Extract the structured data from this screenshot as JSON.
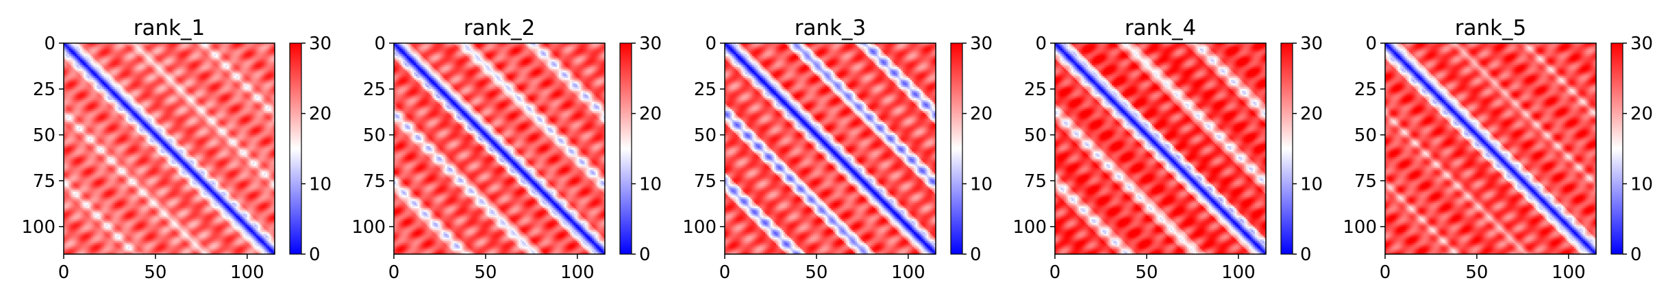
{
  "chart_data": [
    {
      "type": "heatmap",
      "title": "rank_1",
      "n": 115,
      "xticks": [
        0,
        50,
        100
      ],
      "yticks": [
        0,
        25,
        50,
        75,
        100
      ],
      "colorbar_ticks": [
        0,
        10,
        20,
        30
      ],
      "vmin": 0,
      "vmax": 30,
      "colormap": "bwr",
      "diagonal_value": 0,
      "background_value": 24,
      "off_diagonal_bands": [
        38,
        76
      ],
      "band_value": 15
    },
    {
      "type": "heatmap",
      "title": "rank_2",
      "n": 115,
      "xticks": [
        0,
        50,
        100
      ],
      "yticks": [
        0,
        25,
        50,
        75,
        100
      ],
      "colorbar_ticks": [
        0,
        10,
        20,
        30
      ],
      "vmin": 0,
      "vmax": 30,
      "colormap": "bwr",
      "diagonal_value": 0,
      "background_value": 25,
      "off_diagonal_bands": [
        38,
        76
      ],
      "band_value": 13
    },
    {
      "type": "heatmap",
      "title": "rank_3",
      "n": 115,
      "xticks": [
        0,
        50,
        100
      ],
      "yticks": [
        0,
        25,
        50,
        75,
        100
      ],
      "colorbar_ticks": [
        0,
        10,
        20,
        30
      ],
      "vmin": 0,
      "vmax": 30,
      "colormap": "bwr",
      "diagonal_value": 0,
      "background_value": 25,
      "off_diagonal_bands": [
        38,
        76
      ],
      "band_value": 10
    },
    {
      "type": "heatmap",
      "title": "rank_4",
      "n": 115,
      "xticks": [
        0,
        50,
        100
      ],
      "yticks": [
        0,
        25,
        50,
        75,
        100
      ],
      "colorbar_ticks": [
        0,
        10,
        20,
        30
      ],
      "vmin": 0,
      "vmax": 30,
      "colormap": "bwr",
      "diagonal_value": 0,
      "background_value": 27,
      "off_diagonal_bands": [
        38,
        76
      ],
      "band_value": 14
    },
    {
      "type": "heatmap",
      "title": "rank_5",
      "n": 115,
      "xticks": [
        0,
        50,
        100
      ],
      "yticks": [
        0,
        25,
        50,
        75,
        100
      ],
      "colorbar_ticks": [
        0,
        10,
        20,
        30
      ],
      "vmin": 0,
      "vmax": 30,
      "colormap": "bwr",
      "diagonal_value": 0,
      "background_value": 26,
      "off_diagonal_bands": [
        38,
        76
      ],
      "band_value": 18
    }
  ],
  "colors": {
    "low": "#0000ff",
    "mid": "#ffffff",
    "high": "#ff0000"
  }
}
